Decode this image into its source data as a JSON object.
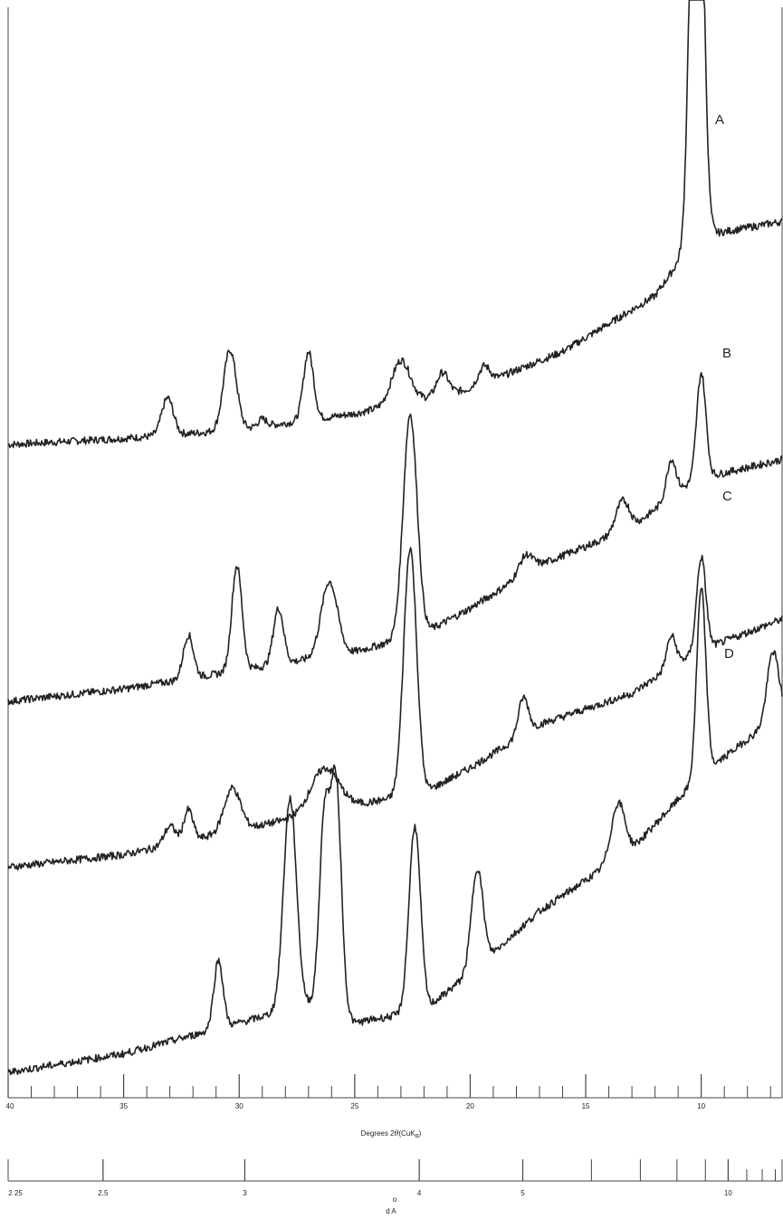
{
  "chart_data": {
    "type": "line",
    "x_axis": {
      "title_prefix": "Degrees 2",
      "title_symbol": "θ",
      "title_suffix": "(CuK",
      "title_sub": "α",
      "title_close": ")",
      "range": [
        40,
        6.5
      ],
      "direction": "decreasing-left-to-right",
      "major_ticks": [
        40,
        35,
        30,
        25,
        20,
        15,
        10
      ],
      "tick_labels": [
        "40",
        "35",
        "30",
        "25",
        "20",
        "15",
        "10"
      ]
    },
    "d_axis": {
      "title": "d A",
      "title_ring": "o",
      "unit": "Å",
      "labeled_ticks": [
        {
          "d": 2.25,
          "label": "2 25"
        },
        {
          "d": 2.5,
          "label": "2.5"
        },
        {
          "d": 3,
          "label": "3"
        },
        {
          "d": 4,
          "label": "4"
        },
        {
          "d": 5,
          "label": "5"
        },
        {
          "d": 10,
          "label": "10"
        }
      ],
      "minor_ticks": [
        6,
        7,
        8,
        9,
        11,
        12,
        13
      ]
    },
    "series": [
      {
        "name": "A",
        "color": "#222222",
        "baseline": [
          [
            40,
            0.1
          ],
          [
            35,
            0.15
          ],
          [
            30,
            0.22
          ],
          [
            25,
            0.35
          ],
          [
            20,
            0.55
          ],
          [
            16,
            0.85
          ],
          [
            12,
            1.3
          ],
          [
            10.5,
            1.7
          ],
          [
            9.5,
            1.8
          ],
          [
            6.5,
            1.9
          ]
        ],
        "peaks": [
          {
            "two_theta": 33.1,
            "height": 0.3,
            "width": 0.25
          },
          {
            "two_theta": 30.4,
            "height": 0.65,
            "width": 0.28
          },
          {
            "two_theta": 29.0,
            "height": 0.06,
            "width": 0.2
          },
          {
            "two_theta": 27.0,
            "height": 0.55,
            "width": 0.22
          },
          {
            "two_theta": 23.0,
            "height": 0.35,
            "width": 0.4
          },
          {
            "two_theta": 21.2,
            "height": 0.18,
            "width": 0.25
          },
          {
            "two_theta": 19.4,
            "height": 0.14,
            "width": 0.25
          },
          {
            "two_theta": 10.2,
            "height": 5.0,
            "width": 0.25
          }
        ]
      },
      {
        "name": "B",
        "color": "#222222",
        "baseline": [
          [
            40,
            0.0
          ],
          [
            35,
            0.1
          ],
          [
            30,
            0.25
          ],
          [
            25,
            0.4
          ],
          [
            22,
            0.55
          ],
          [
            20,
            0.75
          ],
          [
            17,
            1.1
          ],
          [
            13,
            1.4
          ],
          [
            11,
            1.7
          ],
          [
            10,
            1.8
          ],
          [
            6.5,
            1.95
          ]
        ],
        "peaks": [
          {
            "two_theta": 32.2,
            "height": 0.35,
            "width": 0.22
          },
          {
            "two_theta": 30.1,
            "height": 0.85,
            "width": 0.22
          },
          {
            "two_theta": 28.3,
            "height": 0.45,
            "width": 0.22
          },
          {
            "two_theta": 26.1,
            "height": 0.6,
            "width": 0.35
          },
          {
            "two_theta": 22.6,
            "height": 1.8,
            "width": 0.3
          },
          {
            "two_theta": 17.6,
            "height": 0.15,
            "width": 0.3
          },
          {
            "two_theta": 13.4,
            "height": 0.25,
            "width": 0.3
          },
          {
            "two_theta": 11.3,
            "height": 0.3,
            "width": 0.2
          },
          {
            "two_theta": 10.0,
            "height": 0.85,
            "width": 0.2
          }
        ]
      },
      {
        "name": "C",
        "color": "#222222",
        "baseline": [
          [
            40,
            0.05
          ],
          [
            35,
            0.15
          ],
          [
            30,
            0.35
          ],
          [
            25,
            0.55
          ],
          [
            22,
            0.65
          ],
          [
            20,
            0.85
          ],
          [
            17,
            1.2
          ],
          [
            13,
            1.45
          ],
          [
            11,
            1.7
          ],
          [
            10,
            1.8
          ],
          [
            6.5,
            2.05
          ]
        ],
        "peaks": [
          {
            "two_theta": 33.0,
            "height": 0.15,
            "width": 0.25
          },
          {
            "two_theta": 32.2,
            "height": 0.25,
            "width": 0.2
          },
          {
            "two_theta": 30.3,
            "height": 0.35,
            "width": 0.35
          },
          {
            "two_theta": 26.3,
            "height": 0.35,
            "width": 0.6
          },
          {
            "two_theta": 22.6,
            "height": 2.0,
            "width": 0.28
          },
          {
            "two_theta": 17.7,
            "height": 0.3,
            "width": 0.22
          },
          {
            "two_theta": 11.3,
            "height": 0.25,
            "width": 0.2
          },
          {
            "two_theta": 10.0,
            "height": 0.75,
            "width": 0.2
          }
        ]
      },
      {
        "name": "D",
        "color": "#222222",
        "baseline": [
          [
            40,
            0.0
          ],
          [
            35,
            0.15
          ],
          [
            30,
            0.4
          ],
          [
            26,
            0.6
          ],
          [
            25,
            0.4
          ],
          [
            22,
            0.5
          ],
          [
            20,
            0.8
          ],
          [
            17,
            1.3
          ],
          [
            13,
            1.8
          ],
          [
            11,
            2.2
          ],
          [
            10,
            2.4
          ],
          [
            6.5,
            2.9
          ]
        ],
        "peaks": [
          {
            "two_theta": 30.9,
            "height": 0.55,
            "width": 0.2
          },
          {
            "two_theta": 27.8,
            "height": 1.7,
            "width": 0.28
          },
          {
            "two_theta": 26.3,
            "height": 1.5,
            "width": 0.22
          },
          {
            "two_theta": 25.8,
            "height": 1.75,
            "width": 0.22
          },
          {
            "two_theta": 22.4,
            "height": 1.5,
            "width": 0.25
          },
          {
            "two_theta": 19.7,
            "height": 0.8,
            "width": 0.25
          },
          {
            "two_theta": 13.6,
            "height": 0.45,
            "width": 0.3
          },
          {
            "two_theta": 10.0,
            "height": 1.5,
            "width": 0.2
          },
          {
            "two_theta": 6.9,
            "height": 0.55,
            "width": 0.25
          }
        ]
      }
    ]
  }
}
